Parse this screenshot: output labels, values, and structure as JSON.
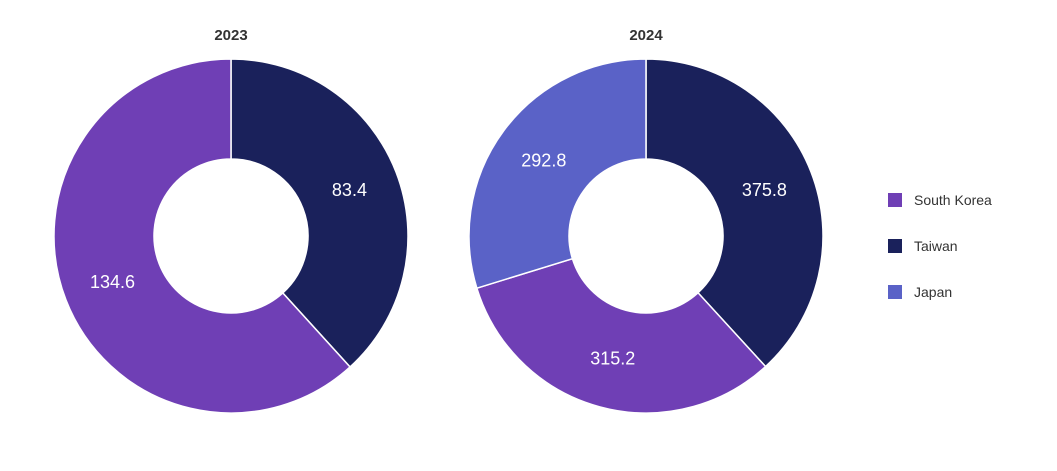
{
  "chart_data": [
    {
      "type": "pie",
      "variant": "donut",
      "title": "2023",
      "categories": [
        "Taiwan",
        "South Korea"
      ],
      "values": [
        83.4,
        134.6
      ]
    },
    {
      "type": "pie",
      "variant": "donut",
      "title": "2024",
      "categories": [
        "Taiwan",
        "South Korea",
        "Japan"
      ],
      "values": [
        375.8,
        315.2,
        292.8
      ]
    }
  ],
  "legend": [
    {
      "label": "South Korea",
      "color": "#6f3fb5"
    },
    {
      "label": "Taiwan",
      "color": "#1a215b"
    },
    {
      "label": "Japan",
      "color": "#5a62c7"
    }
  ],
  "colors": {
    "South Korea": "#6f3fb5",
    "Taiwan": "#1a215b",
    "Japan": "#5a62c7"
  }
}
